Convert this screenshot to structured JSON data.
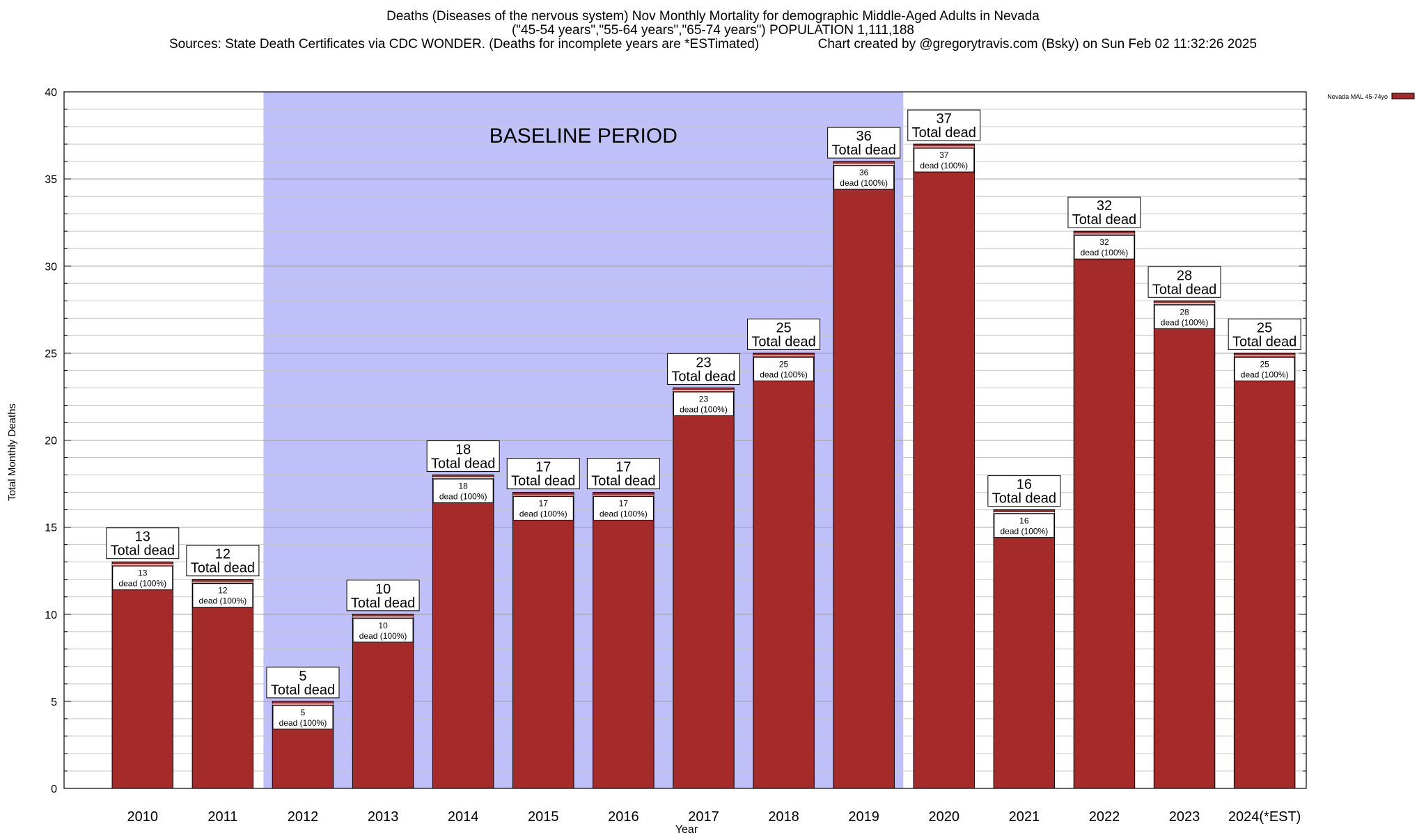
{
  "titles": {
    "line1": "Deaths (Diseases of the nervous system) Nov Monthly Mortality for demographic Middle-Aged Adults in Nevada",
    "line2": "(\"45-54 years\",\"55-64 years\",\"65-74 years\") POPULATION 1,111,188",
    "line3": "Sources: State Death Certificates via CDC WONDER. (Deaths for incomplete years are *ESTimated)                Chart created by @gregorytravis.com (Bsky) on Sun Feb 02 11:32:26 2025"
  },
  "chart_data": {
    "type": "bar",
    "xlabel": "Year",
    "ylabel": "Total Monthly Deaths",
    "ylim": [
      0,
      40
    ],
    "yticks": [
      0,
      5,
      10,
      15,
      20,
      25,
      30,
      35,
      40
    ],
    "grid": true,
    "legend": {
      "position": "top-right",
      "label": "Nevada MAL 45-74yo"
    },
    "categories": [
      "2010",
      "2011",
      "2012",
      "2013",
      "2014",
      "2015",
      "2016",
      "2017",
      "2018",
      "2019",
      "2020",
      "2021",
      "2022",
      "2023",
      "2024(*EST)"
    ],
    "series": [
      {
        "name": "Nevada MAL 45-74yo",
        "color": "#a52a2a",
        "values": [
          13,
          12,
          5,
          10,
          18,
          17,
          17,
          23,
          25,
          36,
          37,
          16,
          32,
          28,
          25
        ]
      }
    ],
    "baseline": {
      "label": "BASELINE PERIOD",
      "from": "2012",
      "to": "2019",
      "color": "#bfbff9"
    },
    "top_label_suffix": "Total dead",
    "inner_label_suffix": "dead (100%)"
  }
}
